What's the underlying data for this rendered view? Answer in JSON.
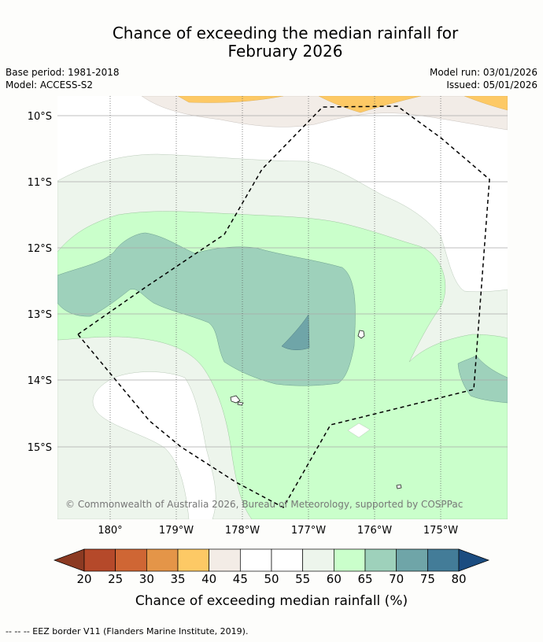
{
  "title": {
    "line1": "Chance of exceeding the median rainfall for",
    "line2": "February 2026"
  },
  "meta": {
    "base_period": "Base period: 1981-2018",
    "model": "Model: ACCESS-S2",
    "model_run": "Model run: 03/01/2026",
    "issued": "Issued: 05/01/2026"
  },
  "map": {
    "copyright": "© Commonwealth of Australia 2026, Bureau of Meteorology, supported by COSPPac",
    "lat_labels": [
      "10°S",
      "11°S",
      "12°S",
      "13°S",
      "14°S",
      "15°S"
    ],
    "lon_labels": [
      "180°",
      "179°W",
      "178°W",
      "177°W",
      "176°W",
      "175°W"
    ]
  },
  "colorbar": {
    "ticks": [
      "20",
      "25",
      "30",
      "35",
      "40",
      "45",
      "50",
      "55",
      "60",
      "65",
      "70",
      "75",
      "80"
    ],
    "colors": [
      "#8c3a22",
      "#b5492a",
      "#cf6634",
      "#e49548",
      "#fdc965",
      "#f3ece6",
      "#ffffff",
      "#ffffff",
      "#edf5ec",
      "#caffcb",
      "#9ed1bb",
      "#6fa5a8",
      "#437c98",
      "#1b4c80"
    ],
    "label": "Chance of exceeding median rainfall (%)"
  },
  "footer": "--  --  -- EEZ border V11 (Flanders Marine Institute, 2019)."
}
